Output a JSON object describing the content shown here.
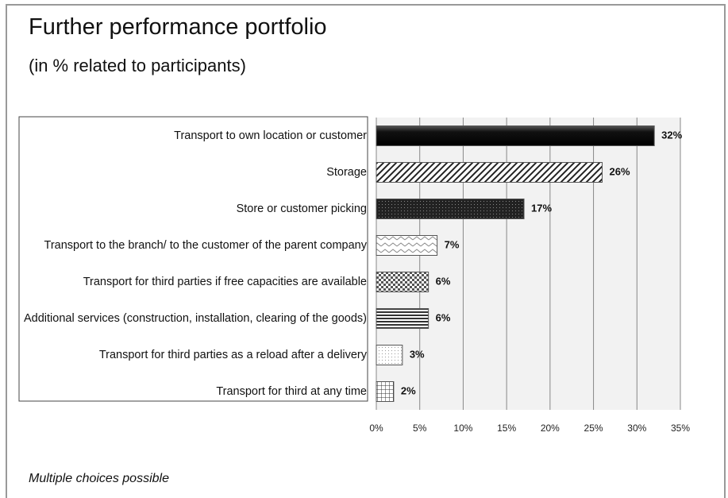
{
  "chart_data": {
    "type": "hbar",
    "title": "Further performance portfolio",
    "subtitle": "(in % related to participants)",
    "footnote": "Multiple choices possible",
    "categories": [
      "Transport to own location or customer",
      "Storage",
      "Store or customer picking",
      "Transport to the branch/ to the customer of the parent company",
      "Transport for third parties if free capacities are available",
      "Additional services (construction, installation, clearing of the goods)",
      "Transport for third parties as a reload after a delivery",
      "Transport for third at any time"
    ],
    "values": [
      32,
      26,
      17,
      7,
      6,
      6,
      3,
      2
    ],
    "value_labels": [
      "32%",
      "26%",
      "17%",
      "7%",
      "6%",
      "6%",
      "3%",
      "2%"
    ],
    "xlim": [
      0,
      35
    ],
    "xticks": [
      {
        "value": 0,
        "label": "0%"
      },
      {
        "value": 5,
        "label": "5%"
      },
      {
        "value": 10,
        "label": "10%"
      },
      {
        "value": 15,
        "label": "15%"
      },
      {
        "value": 20,
        "label": "20%"
      },
      {
        "value": 25,
        "label": "25%"
      },
      {
        "value": 30,
        "label": "30%"
      },
      {
        "value": 35,
        "label": "35%"
      }
    ],
    "grid": true
  }
}
